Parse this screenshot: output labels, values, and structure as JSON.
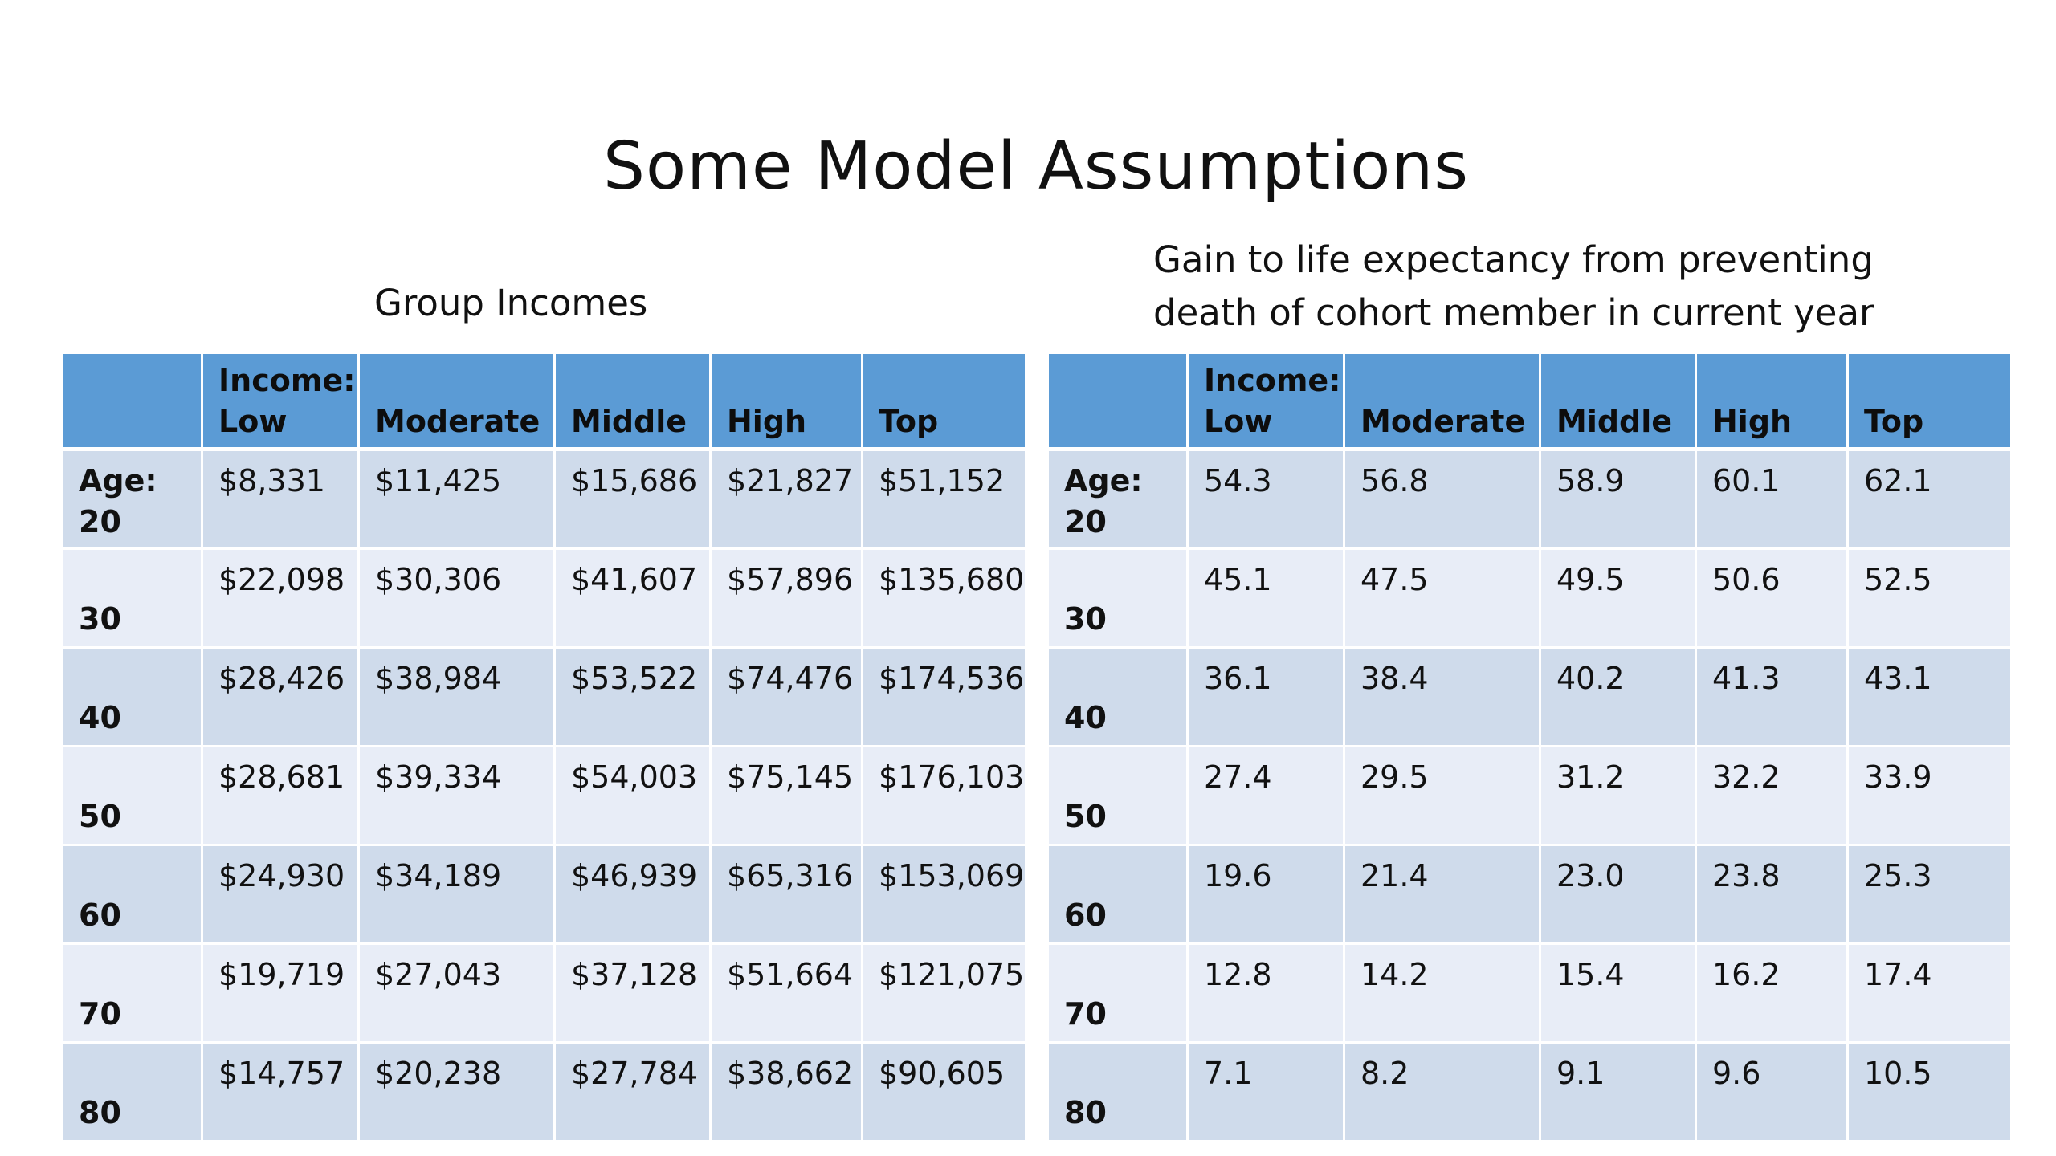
{
  "slide": {
    "title": "Some Model Assumptions"
  },
  "left_table": {
    "caption": "Group Incomes",
    "headers": [
      "",
      "Income:",
      "Low",
      "Moderate",
      "Middle",
      "High",
      "Top"
    ],
    "rows": [
      {
        "age_prefix": "Age:",
        "age": "20",
        "values": [
          "$8,331",
          "$11,425",
          "$15,686",
          "$21,827",
          "$51,152"
        ]
      },
      {
        "age_prefix": "",
        "age": "30",
        "values": [
          "$22,098",
          "$30,306",
          "$41,607",
          "$57,896",
          "$135,680"
        ]
      },
      {
        "age_prefix": "",
        "age": "40",
        "values": [
          "$28,426",
          "$38,984",
          "$53,522",
          "$74,476",
          "$174,536"
        ]
      },
      {
        "age_prefix": "",
        "age": "50",
        "values": [
          "$28,681",
          "$39,334",
          "$54,003",
          "$75,145",
          "$176,103"
        ]
      },
      {
        "age_prefix": "",
        "age": "60",
        "values": [
          "$24,930",
          "$34,189",
          "$46,939",
          "$65,316",
          "$153,069"
        ]
      },
      {
        "age_prefix": "",
        "age": "70",
        "values": [
          "$19,719",
          "$27,043",
          "$37,128",
          "$51,664",
          "$121,075"
        ]
      },
      {
        "age_prefix": "",
        "age": "80",
        "values": [
          "$14,757",
          "$20,238",
          "$27,784",
          "$38,662",
          "$90,605"
        ]
      }
    ]
  },
  "right_table": {
    "caption_line1": "Gain to life expectancy from preventing",
    "caption_line2": "death of cohort member in current year",
    "headers": [
      "",
      "Income:",
      "Low",
      "Moderate",
      "Middle",
      "High",
      "Top"
    ],
    "rows": [
      {
        "age_prefix": "Age:",
        "age": "20",
        "values": [
          "54.3",
          "56.8",
          "58.9",
          "60.1",
          "62.1"
        ]
      },
      {
        "age_prefix": "",
        "age": "30",
        "values": [
          "45.1",
          "47.5",
          "49.5",
          "50.6",
          "52.5"
        ]
      },
      {
        "age_prefix": "",
        "age": "40",
        "values": [
          "36.1",
          "38.4",
          "40.2",
          "41.3",
          "43.1"
        ]
      },
      {
        "age_prefix": "",
        "age": "50",
        "values": [
          "27.4",
          "29.5",
          "31.2",
          "32.2",
          "33.9"
        ]
      },
      {
        "age_prefix": "",
        "age": "60",
        "values": [
          "19.6",
          "21.4",
          "23.0",
          "23.8",
          "25.3"
        ]
      },
      {
        "age_prefix": "",
        "age": "70",
        "values": [
          "12.8",
          "14.2",
          "15.4",
          "16.2",
          "17.4"
        ]
      },
      {
        "age_prefix": "",
        "age": "80",
        "values": [
          "7.1",
          "8.2",
          "9.1",
          "9.6",
          "10.5"
        ]
      }
    ]
  }
}
